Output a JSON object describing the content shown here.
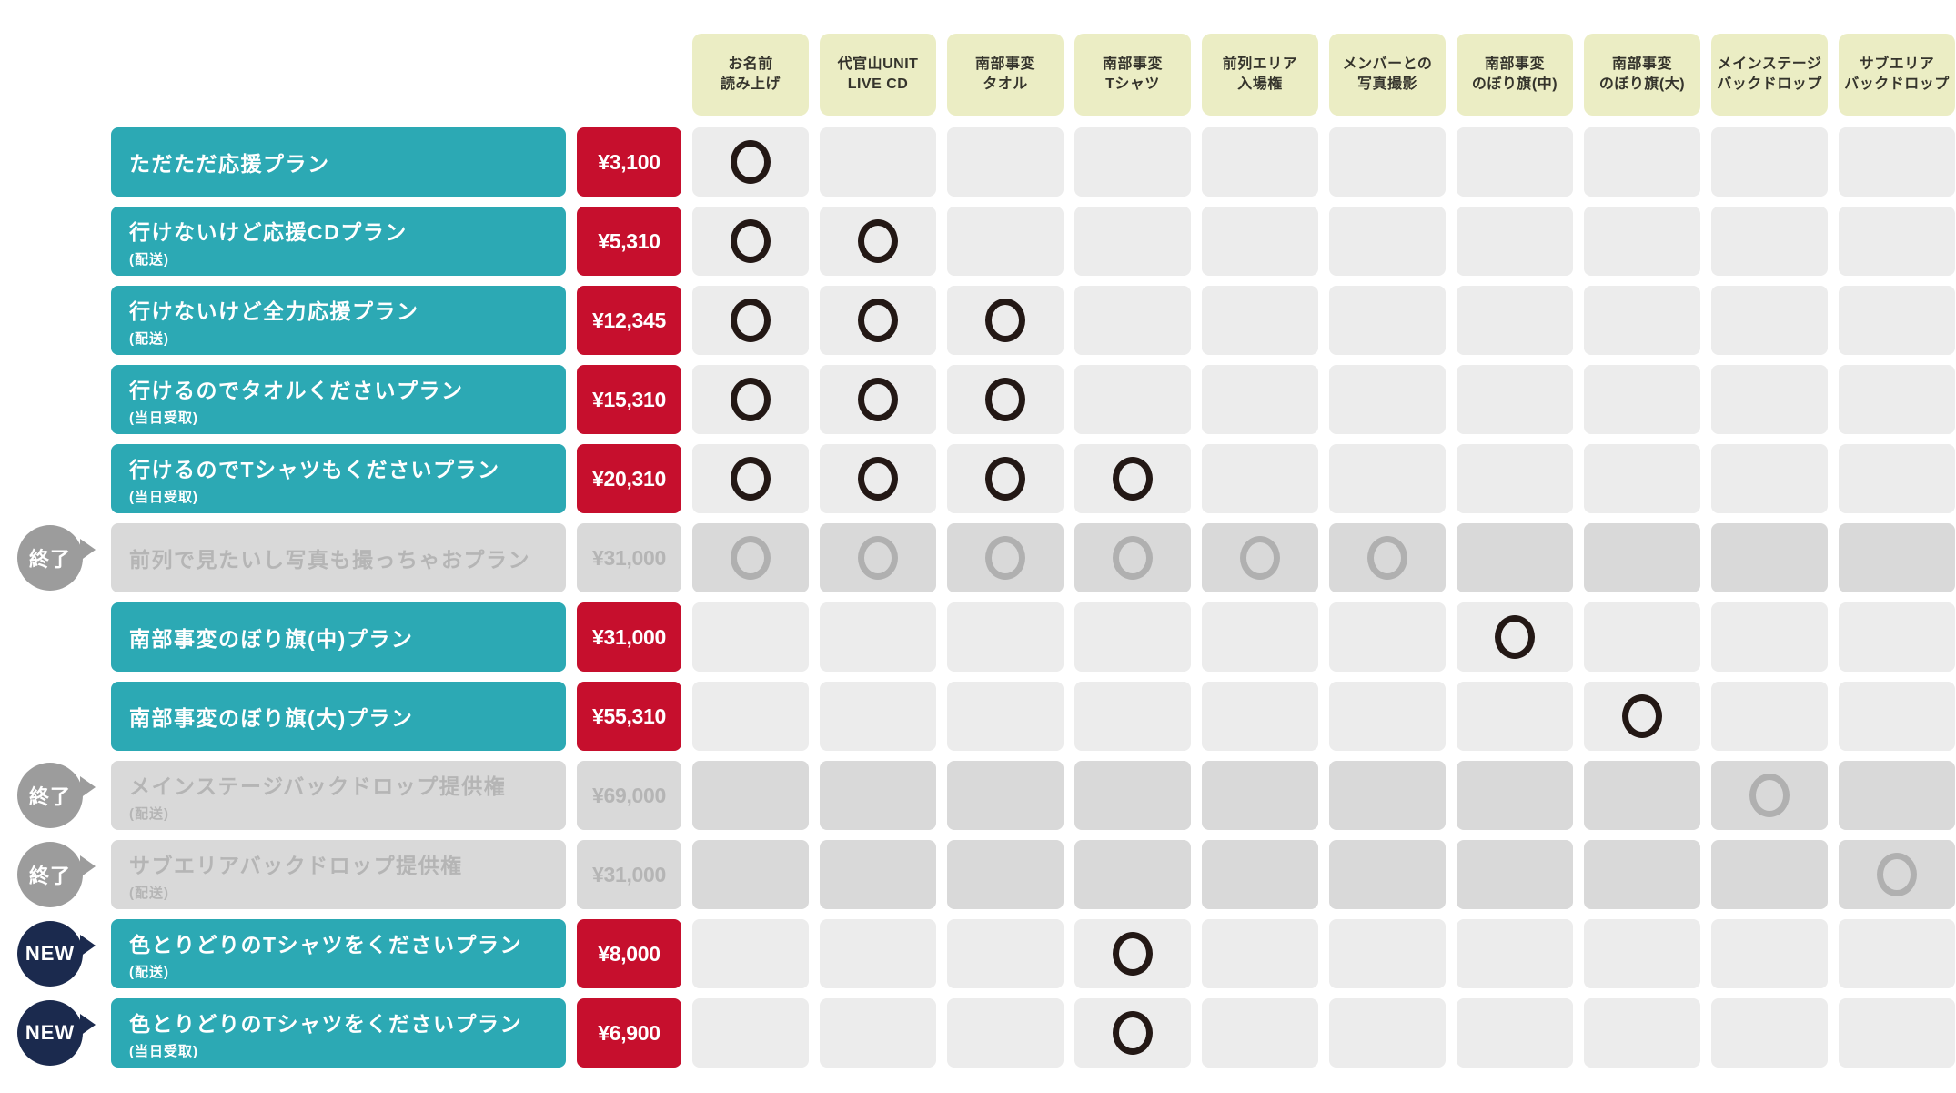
{
  "colors": {
    "plan_bar_teal": "#2ca9b4",
    "price_bar_red": "#c60f2d",
    "header_yellow_green": "#ebedc4",
    "cell_gray": "#ececec",
    "disabled_gray": "#d9d9d9",
    "disabled_text_gray": "#b5b5b5",
    "circle_dark": "#231815",
    "circle_disabled": "#b0b0b0",
    "ended_badge_gray": "#9c9c9c",
    "new_badge_navy": "#1b2a4e"
  },
  "chart_data": {
    "type": "table",
    "columns": [
      {
        "line1": "お名前",
        "line2": "読み上げ"
      },
      {
        "line1": "代官山UNIT",
        "line2": "LIVE CD"
      },
      {
        "line1": "南部事変",
        "line2": "タオル"
      },
      {
        "line1": "南部事変",
        "line2": "Tシャツ"
      },
      {
        "line1": "前列エリア",
        "line2": "入場権"
      },
      {
        "line1": "メンバーとの",
        "line2": "写真撮影"
      },
      {
        "line1": "南部事変",
        "line2": "のぼり旗(中)"
      },
      {
        "line1": "南部事変",
        "line2": "のぼり旗(大)"
      },
      {
        "line1": "メインステージ",
        "line2": "バックドロップ"
      },
      {
        "line1": "サブエリア",
        "line2": "バックドロップ"
      }
    ],
    "plans": [
      {
        "name": "ただただ応援プラン",
        "note": "",
        "price": "¥3,100",
        "status": "active",
        "badge": "",
        "benefits": [
          1,
          0,
          0,
          0,
          0,
          0,
          0,
          0,
          0,
          0
        ]
      },
      {
        "name": "行けないけど応援CDプラン",
        "note": "(配送)",
        "price": "¥5,310",
        "status": "active",
        "badge": "",
        "benefits": [
          1,
          1,
          0,
          0,
          0,
          0,
          0,
          0,
          0,
          0
        ]
      },
      {
        "name": "行けないけど全力応援プラン",
        "note": "(配送)",
        "price": "¥12,345",
        "status": "active",
        "badge": "",
        "benefits": [
          1,
          1,
          1,
          0,
          0,
          0,
          0,
          0,
          0,
          0
        ]
      },
      {
        "name": "行けるのでタオルくださいプラン",
        "note": "(当日受取)",
        "price": "¥15,310",
        "status": "active",
        "badge": "",
        "benefits": [
          1,
          1,
          1,
          0,
          0,
          0,
          0,
          0,
          0,
          0
        ]
      },
      {
        "name": "行けるのでTシャツもくださいプラン",
        "note": "(当日受取)",
        "price": "¥20,310",
        "status": "active",
        "badge": "",
        "benefits": [
          1,
          1,
          1,
          1,
          0,
          0,
          0,
          0,
          0,
          0
        ]
      },
      {
        "name": "前列で見たいし写真も撮っちゃおプラン",
        "note": "",
        "price": "¥31,000",
        "status": "ended",
        "badge": "終了",
        "benefits": [
          1,
          1,
          1,
          1,
          1,
          1,
          0,
          0,
          0,
          0
        ]
      },
      {
        "name": "南部事変のぼり旗(中)プラン",
        "note": "",
        "price": "¥31,000",
        "status": "active",
        "badge": "",
        "benefits": [
          0,
          0,
          0,
          0,
          0,
          0,
          1,
          0,
          0,
          0
        ]
      },
      {
        "name": "南部事変のぼり旗(大)プラン",
        "note": "",
        "price": "¥55,310",
        "status": "active",
        "badge": "",
        "benefits": [
          0,
          0,
          0,
          0,
          0,
          0,
          0,
          1,
          0,
          0
        ]
      },
      {
        "name": "メインステージバックドロップ提供権",
        "note": "(配送)",
        "price": "¥69,000",
        "status": "ended",
        "badge": "終了",
        "benefits": [
          0,
          0,
          0,
          0,
          0,
          0,
          0,
          0,
          1,
          0
        ]
      },
      {
        "name": "サブエリアバックドロップ提供権",
        "note": "(配送)",
        "price": "¥31,000",
        "status": "ended",
        "badge": "終了",
        "benefits": [
          0,
          0,
          0,
          0,
          0,
          0,
          0,
          0,
          0,
          1
        ]
      },
      {
        "name": "色とりどりのTシャツをくださいプラン",
        "note": "(配送)",
        "price": "¥8,000",
        "status": "new",
        "badge": "NEW",
        "benefits": [
          0,
          0,
          0,
          1,
          0,
          0,
          0,
          0,
          0,
          0
        ]
      },
      {
        "name": "色とりどりのTシャツをくださいプラン",
        "note": "(当日受取)",
        "price": "¥6,900",
        "status": "new",
        "badge": "NEW",
        "benefits": [
          0,
          0,
          0,
          1,
          0,
          0,
          0,
          0,
          0,
          0
        ]
      }
    ]
  }
}
